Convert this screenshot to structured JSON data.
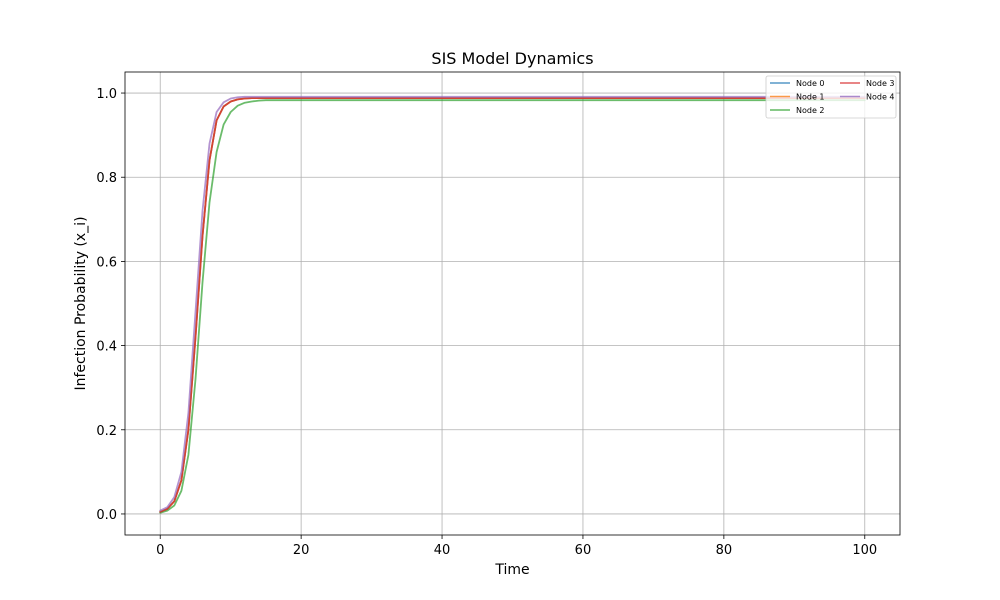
{
  "chart_data": {
    "type": "line",
    "title": "SIS Model Dynamics",
    "xlabel": "Time",
    "ylabel": "Infection Probability (x_i)",
    "xlim": [
      -5,
      105
    ],
    "ylim": [
      -0.05,
      1.05
    ],
    "xticks": [
      0,
      20,
      40,
      60,
      80,
      100
    ],
    "yticks": [
      0.0,
      0.2,
      0.4,
      0.6,
      0.8,
      1.0
    ],
    "xtick_labels": [
      "0",
      "20",
      "40",
      "60",
      "80",
      "100"
    ],
    "ytick_labels": [
      "0.0",
      "0.2",
      "0.4",
      "0.6",
      "0.8",
      "1.0"
    ],
    "grid": true,
    "legend_position": "top-right",
    "legend_columns": 2,
    "series": [
      {
        "name": "Node 0",
        "color": "#1f77b4",
        "x": [
          0,
          1,
          2,
          3,
          4,
          5,
          6,
          7,
          8,
          9,
          10,
          11,
          12,
          13,
          14,
          15,
          17,
          20,
          25,
          30,
          40,
          50,
          60,
          70,
          80,
          90,
          100
        ],
        "y": [
          0.005,
          0.012,
          0.03,
          0.08,
          0.2,
          0.42,
          0.66,
          0.84,
          0.935,
          0.968,
          0.98,
          0.985,
          0.987,
          0.988,
          0.988,
          0.988,
          0.988,
          0.988,
          0.988,
          0.988,
          0.988,
          0.988,
          0.988,
          0.988,
          0.988,
          0.988,
          0.988
        ]
      },
      {
        "name": "Node 1",
        "color": "#ff7f0e",
        "x": [
          0,
          1,
          2,
          3,
          4,
          5,
          6,
          7,
          8,
          9,
          10,
          11,
          12,
          13,
          14,
          15,
          17,
          20,
          25,
          30,
          40,
          50,
          60,
          70,
          80,
          90,
          100
        ],
        "y": [
          0.005,
          0.012,
          0.03,
          0.08,
          0.2,
          0.42,
          0.66,
          0.84,
          0.935,
          0.968,
          0.98,
          0.985,
          0.987,
          0.988,
          0.988,
          0.988,
          0.988,
          0.988,
          0.988,
          0.988,
          0.988,
          0.988,
          0.988,
          0.988,
          0.988,
          0.988,
          0.988
        ]
      },
      {
        "name": "Node 2",
        "color": "#2ca02c",
        "x": [
          0,
          1,
          2,
          3,
          4,
          5,
          6,
          7,
          8,
          9,
          10,
          11,
          12,
          13,
          14,
          15,
          17,
          20,
          25,
          30,
          40,
          50,
          60,
          70,
          80,
          90,
          100
        ],
        "y": [
          0.003,
          0.008,
          0.02,
          0.055,
          0.14,
          0.32,
          0.55,
          0.74,
          0.86,
          0.925,
          0.955,
          0.97,
          0.977,
          0.98,
          0.982,
          0.983,
          0.983,
          0.983,
          0.983,
          0.983,
          0.983,
          0.983,
          0.983,
          0.983,
          0.983,
          0.983,
          0.983
        ]
      },
      {
        "name": "Node 3",
        "color": "#d62728",
        "x": [
          0,
          1,
          2,
          3,
          4,
          5,
          6,
          7,
          8,
          9,
          10,
          11,
          12,
          13,
          14,
          15,
          17,
          20,
          25,
          30,
          40,
          50,
          60,
          70,
          80,
          90,
          100
        ],
        "y": [
          0.005,
          0.012,
          0.03,
          0.08,
          0.2,
          0.42,
          0.66,
          0.84,
          0.935,
          0.968,
          0.98,
          0.985,
          0.987,
          0.988,
          0.988,
          0.988,
          0.988,
          0.988,
          0.988,
          0.988,
          0.988,
          0.988,
          0.988,
          0.988,
          0.988,
          0.988,
          0.988
        ]
      },
      {
        "name": "Node 4",
        "color": "#9467bd",
        "x": [
          0,
          1,
          2,
          3,
          4,
          5,
          6,
          7,
          8,
          9,
          10,
          11,
          12,
          13,
          14,
          15,
          17,
          20,
          25,
          30,
          40,
          50,
          60,
          70,
          80,
          90,
          100
        ],
        "y": [
          0.008,
          0.016,
          0.04,
          0.1,
          0.24,
          0.48,
          0.72,
          0.88,
          0.955,
          0.978,
          0.987,
          0.99,
          0.991,
          0.991,
          0.991,
          0.991,
          0.991,
          0.991,
          0.991,
          0.991,
          0.991,
          0.991,
          0.991,
          0.991,
          0.991,
          0.991,
          0.991
        ]
      }
    ]
  }
}
